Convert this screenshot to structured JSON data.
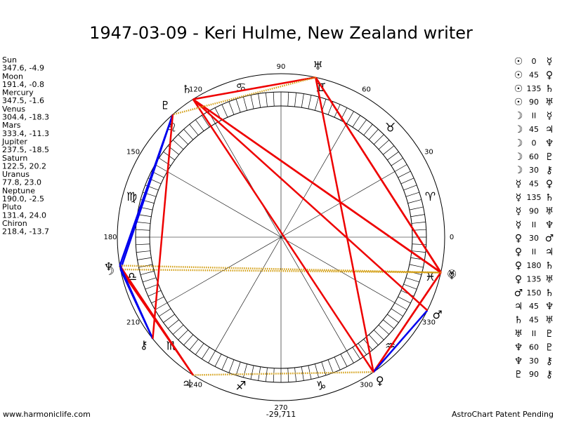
{
  "title": "1947-03-09 - Keri Hulme, New Zealand writer",
  "planets": [
    {
      "glyph": "☉",
      "name": "Sun",
      "position": "347.6, -4.9"
    },
    {
      "glyph": "☽",
      "name": "Moon",
      "position": "191.4, -0.8"
    },
    {
      "glyph": "☿",
      "name": "Mercury",
      "position": "347.5, -1.6"
    },
    {
      "glyph": "♀",
      "name": "Venus",
      "position": "304.4, -18.3"
    },
    {
      "glyph": "♂",
      "name": "Mars",
      "position": "333.4, -11.3"
    },
    {
      "glyph": "♃",
      "name": "Jupiter",
      "position": "237.5, -18.5"
    },
    {
      "glyph": "♄",
      "name": "Saturn",
      "position": "122.5, 20.2"
    },
    {
      "glyph": "♅",
      "name": "Uranus",
      "position": "77.8, 23.0"
    },
    {
      "glyph": "♆",
      "name": "Neptune",
      "position": "190.0, -2.5"
    },
    {
      "glyph": "♇",
      "name": "Pluto",
      "position": "131.4, 24.0"
    },
    {
      "glyph": "⚷",
      "name": "Chiron",
      "position": "218.4, -13.7"
    }
  ],
  "signs": [
    "♈",
    "♉",
    "♊",
    "♋",
    "♌",
    "♍",
    "♎",
    "♏",
    "♐",
    "♑",
    "♒",
    "♓"
  ],
  "degree_labels": [
    0,
    30,
    60,
    90,
    120,
    150,
    180,
    210,
    240,
    270,
    300,
    330
  ],
  "aspect_styles": {
    "0": {
      "color": "#d4a017",
      "dash": false
    },
    "II": {
      "color": "#d4a017",
      "dash": true
    },
    "30": {
      "color": "#0000ee",
      "dash": false
    },
    "60": {
      "color": "#0000ee",
      "dash": false
    },
    "45": {
      "color": "#ee0000",
      "dash": false
    },
    "90": {
      "color": "#ee0000",
      "dash": false
    },
    "135": {
      "color": "#ee0000",
      "dash": false
    },
    "150": {
      "color": "#ee0000",
      "dash": false
    },
    "180": {
      "color": "#ee0000",
      "dash": false
    }
  },
  "aspects": [
    {
      "from": "☉",
      "type": "0",
      "to": "☿"
    },
    {
      "from": "☉",
      "type": "45",
      "to": "♀"
    },
    {
      "from": "☉",
      "type": "135",
      "to": "♄"
    },
    {
      "from": "☉",
      "type": "90",
      "to": "♅"
    },
    {
      "from": "☽",
      "type": "II",
      "to": "☿"
    },
    {
      "from": "☽",
      "type": "45",
      "to": "♃"
    },
    {
      "from": "☽",
      "type": "0",
      "to": "♆"
    },
    {
      "from": "☽",
      "type": "60",
      "to": "♇"
    },
    {
      "from": "☽",
      "type": "30",
      "to": "⚷"
    },
    {
      "from": "☿",
      "type": "45",
      "to": "♀"
    },
    {
      "from": "☿",
      "type": "135",
      "to": "♄"
    },
    {
      "from": "☿",
      "type": "90",
      "to": "♅"
    },
    {
      "from": "☿",
      "type": "II",
      "to": "♆"
    },
    {
      "from": "♀",
      "type": "30",
      "to": "♂"
    },
    {
      "from": "♀",
      "type": "II",
      "to": "♃"
    },
    {
      "from": "♀",
      "type": "180",
      "to": "♄"
    },
    {
      "from": "♀",
      "type": "135",
      "to": "♅"
    },
    {
      "from": "♂",
      "type": "150",
      "to": "♄"
    },
    {
      "from": "♃",
      "type": "45",
      "to": "♆"
    },
    {
      "from": "♄",
      "type": "45",
      "to": "♅"
    },
    {
      "from": "♅",
      "type": "II",
      "to": "♇"
    },
    {
      "from": "♆",
      "type": "60",
      "to": "♇"
    },
    {
      "from": "♆",
      "type": "30",
      "to": "⚷"
    },
    {
      "from": "♇",
      "type": "90",
      "to": "⚷"
    }
  ],
  "footer": {
    "left": "www.harmoniclife.com",
    "center": "-29,711",
    "right": "AstroChart Patent Pending"
  }
}
